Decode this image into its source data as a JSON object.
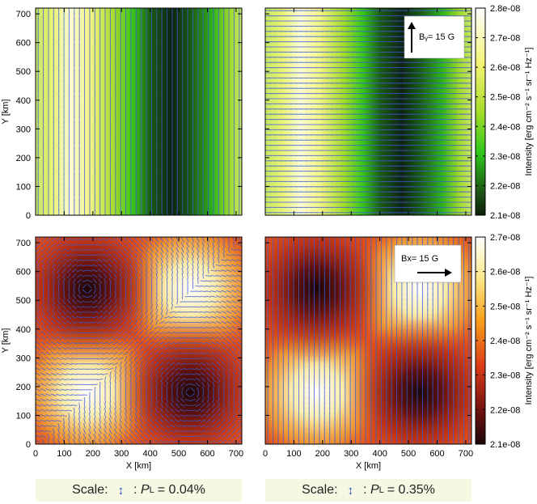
{
  "chart_data": [
    {
      "type": "heatmap",
      "panel": "top-left",
      "xlim": [
        0,
        720
      ],
      "ylim": [
        0,
        720
      ],
      "yticks": [
        "0",
        "100",
        "200",
        "300",
        "400",
        "500",
        "600",
        "700"
      ],
      "ylabel": "Y [km]",
      "pattern": "vertical bands, darkest near x=560 km",
      "vectors": "vertical"
    },
    {
      "type": "heatmap",
      "panel": "top-right",
      "xlim": [
        0,
        720
      ],
      "ylim": [
        0,
        720
      ],
      "pattern": "vertical bands, darkest near x=560 km",
      "vectors": "horizontal",
      "annotation": {
        "text": "Bᵧ= 15 G",
        "direction": "up"
      },
      "colorbar": {
        "colormap": "green",
        "ticks": [
          "2.8e-08",
          "2.7e-08",
          "2.6e-08",
          "2.5e-08",
          "2.4e-08",
          "2.3e-08",
          "2.2e-08",
          "2.1e-08"
        ],
        "range": [
          2.1e-08,
          2.8e-08
        ],
        "label": "Intensity [erg cm⁻² s⁻¹ sr⁻¹ Hz⁻¹]"
      }
    },
    {
      "type": "heatmap",
      "panel": "bottom-left",
      "xlim": [
        0,
        720
      ],
      "ylim": [
        0,
        720
      ],
      "xticks": [
        "0",
        "100",
        "200",
        "300",
        "400",
        "500",
        "600",
        "700"
      ],
      "yticks": [
        "0",
        "100",
        "200",
        "300",
        "400",
        "500",
        "600",
        "700"
      ],
      "xlabel": "X [km]",
      "ylabel": "Y [km]",
      "pattern": "2x2 checkerboard: bright at (540,540) and (180,180), dark at (180,540) and (540,180)",
      "vectors": "circular around dark spots"
    },
    {
      "type": "heatmap",
      "panel": "bottom-right",
      "xlim": [
        0,
        720
      ],
      "ylim": [
        0,
        720
      ],
      "xticks": [
        "0",
        "100",
        "200",
        "300",
        "400",
        "500",
        "600",
        "700"
      ],
      "xlabel": "X [km]",
      "pattern": "2x2 checkerboard: dark at (180,540) and (540,180), bright at (540,540) and (180,180)",
      "vectors": "vertical",
      "annotation": {
        "text": "Bx= 15 G",
        "direction": "right"
      },
      "colorbar": {
        "colormap": "heat",
        "ticks": [
          "2.7e-08",
          "2.6e-08",
          "2.5e-08",
          "2.4e-08",
          "2.3e-08",
          "2.2e-08",
          "2.1e-08"
        ],
        "range": [
          2.1e-08,
          2.7e-08
        ],
        "label": "Intensity [erg cm⁻² s⁻¹ sr⁻¹ Hz⁻¹]"
      }
    }
  ],
  "scales": [
    {
      "label": "Scale:",
      "p": "P",
      "sub": "L",
      "value": "= 0.04%"
    },
    {
      "label": "Scale:",
      "p": "P",
      "sub": "L",
      "value": "= 0.35%"
    }
  ]
}
